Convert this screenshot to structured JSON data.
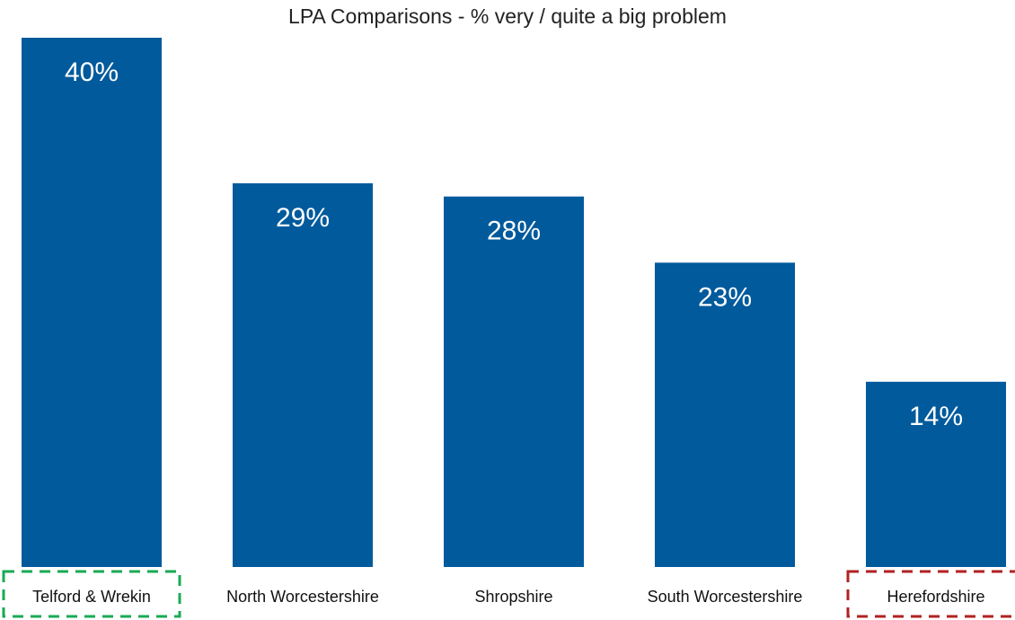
{
  "chart_data": {
    "type": "bar",
    "title": "LPA Comparisons - % very / quite a big problem",
    "categories": [
      "Telford & Wrekin",
      "North Worcestershire",
      "Shropshire",
      "South Worcestershire",
      "Herefordshire"
    ],
    "values": [
      40,
      29,
      28,
      23,
      14
    ],
    "value_labels": [
      "40%",
      "29%",
      "28%",
      "23%",
      "14%"
    ],
    "ylim": [
      0,
      40
    ],
    "grid": false,
    "legend": "none",
    "bar_color": "#005A9C",
    "highlights": [
      {
        "category": "Telford & Wrekin",
        "color": "#1AAA55",
        "style": "dashed"
      },
      {
        "category": "Herefordshire",
        "color": "#B22222",
        "style": "dashed"
      }
    ]
  }
}
